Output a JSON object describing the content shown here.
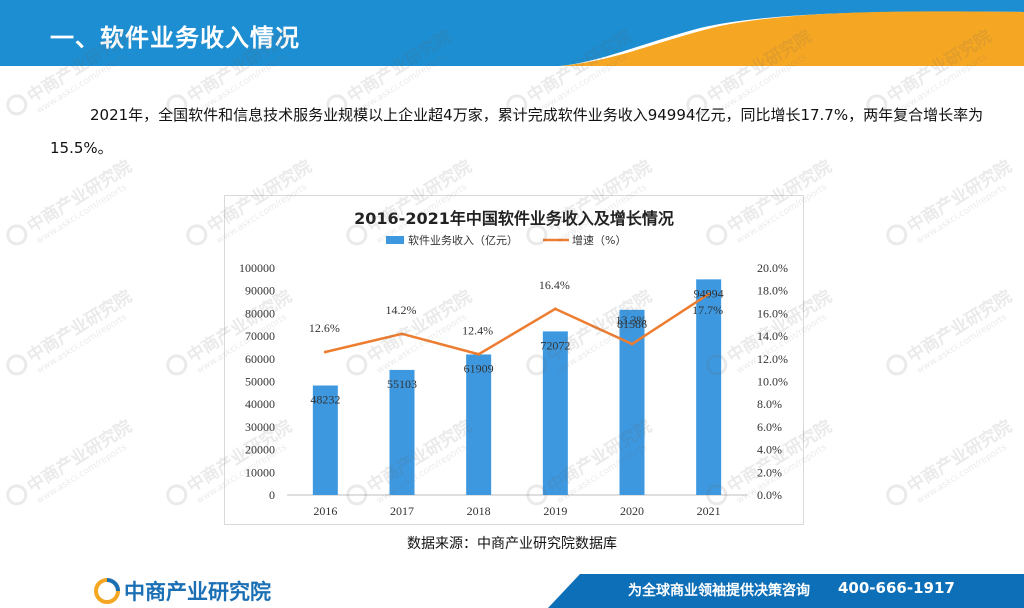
{
  "header": {
    "title": "一、软件业务收入情况"
  },
  "intro": {
    "text": "2021年，全国软件和信息技术服务业规模以上企业超4万家，累计完成软件业务收入94994亿元，同比增长17.7%，两年复合增长率为15.5%。"
  },
  "chart_data": {
    "type": "bar",
    "title": "2016-2021年中国软件业务收入及增长情况",
    "categories": [
      "2016",
      "2017",
      "2018",
      "2019",
      "2020",
      "2021"
    ],
    "series": [
      {
        "name": "软件业务收入（亿元）",
        "type": "bar",
        "axis": "left",
        "values": [
          48232,
          55103,
          61909,
          72072,
          81586,
          94994
        ],
        "labels": [
          "48232",
          "55103",
          "61909",
          "72072",
          "81586",
          "94994"
        ],
        "color": "#3d98e0"
      },
      {
        "name": "增速（%）",
        "type": "line",
        "axis": "right",
        "values": [
          12.6,
          14.2,
          12.4,
          16.4,
          13.3,
          17.7
        ],
        "labels": [
          "12.6%",
          "14.2%",
          "12.4%",
          "16.4%",
          "13.3%",
          "17.7%"
        ],
        "color": "#ed7d31"
      }
    ],
    "y_left": {
      "ylim": [
        0,
        100000
      ],
      "ticks": [
        "0",
        "10000",
        "20000",
        "30000",
        "40000",
        "50000",
        "60000",
        "70000",
        "80000",
        "90000",
        "100000"
      ]
    },
    "y_right": {
      "ylim": [
        0,
        20
      ],
      "ticks": [
        "0.0%",
        "2.0%",
        "4.0%",
        "6.0%",
        "8.0%",
        "10.0%",
        "12.0%",
        "14.0%",
        "16.0%",
        "18.0%",
        "20.0%"
      ]
    },
    "legend": "top",
    "grid": false
  },
  "source": {
    "text": "数据来源：中商产业研究院数据库"
  },
  "footer": {
    "logo": "中商产业研究院",
    "slogan": "为全球商业领袖提供决策咨询",
    "phone": "400-666-1917"
  },
  "watermark": {
    "text": "中商产业研究院",
    "subtext": "www.askci.com/reports"
  },
  "colors": {
    "header_blue": "#1d8ed1",
    "header_orange": "#f5a623",
    "bar": "#3d98e0",
    "line": "#ed7d31",
    "footer_blue": "#0d6fb8"
  }
}
